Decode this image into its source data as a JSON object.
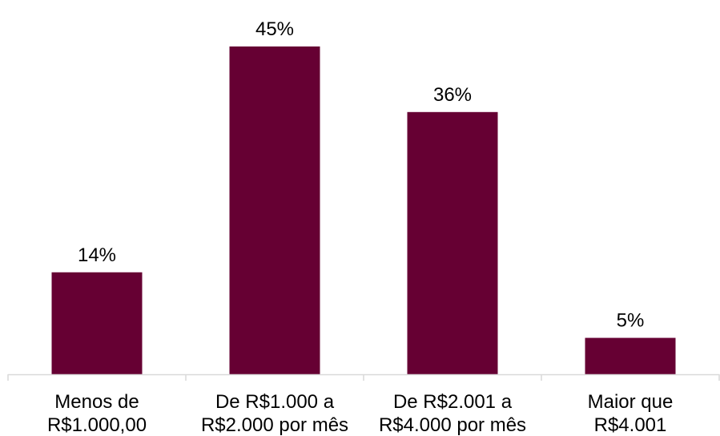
{
  "chart_data": {
    "type": "bar",
    "categories": [
      [
        "Menos de",
        "R$1.000,00"
      ],
      [
        "De R$1.000 a",
        "R$2.000 por mês"
      ],
      [
        "De R$2.001 a",
        "R$4.000 por mês"
      ],
      [
        "Maior que",
        "R$4.001"
      ]
    ],
    "values": [
      14,
      45,
      36,
      5
    ],
    "value_labels": [
      "14%",
      "45%",
      "36%",
      "5%"
    ],
    "title": "",
    "xlabel": "",
    "ylabel": "",
    "ylim": [
      0,
      45
    ],
    "grid": false,
    "legend": "none",
    "bar_color": "#660033",
    "axis_color": "#d9d9d9"
  }
}
